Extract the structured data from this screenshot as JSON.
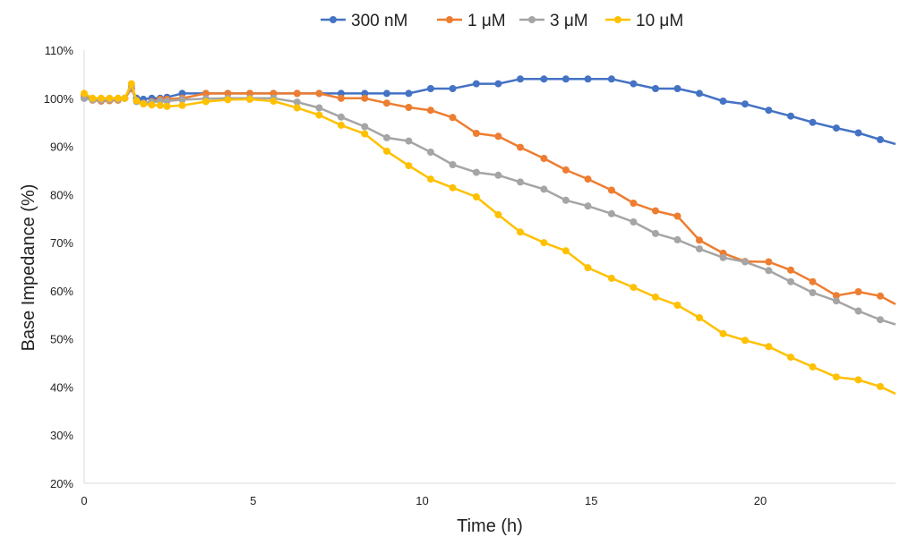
{
  "chart_data": {
    "type": "line",
    "title": "",
    "xlabel": "Time (h)",
    "ylabel": "Base Impedance (%)",
    "xlim": [
      0,
      24
    ],
    "ylim": [
      20,
      110
    ],
    "x_ticks": [
      0,
      5,
      10,
      15,
      20
    ],
    "y_ticks": [
      20,
      30,
      40,
      50,
      60,
      70,
      80,
      90,
      100,
      110
    ],
    "y_tick_format": "percent",
    "legend_position": "top-center",
    "grid": false,
    "series": [
      {
        "name": "300 nM",
        "color": "#4472C4",
        "points": [
          [
            0,
            100
          ],
          [
            0.25,
            99.7
          ],
          [
            0.5,
            99.6
          ],
          [
            0.75,
            99.7
          ],
          [
            1.0,
            99.8
          ],
          [
            1.2,
            100
          ],
          [
            1.4,
            102
          ],
          [
            1.55,
            100
          ],
          [
            1.75,
            99.8
          ],
          [
            2.0,
            100
          ],
          [
            2.25,
            100
          ],
          [
            2.45,
            100.2
          ],
          [
            2.9,
            101
          ],
          [
            3.6,
            101
          ],
          [
            4.25,
            101
          ],
          [
            4.9,
            101
          ],
          [
            5.6,
            101
          ],
          [
            6.3,
            101
          ],
          [
            6.95,
            101
          ],
          [
            7.6,
            101
          ],
          [
            8.3,
            101
          ],
          [
            8.95,
            101
          ],
          [
            9.6,
            101
          ],
          [
            10.25,
            102
          ],
          [
            10.9,
            102
          ],
          [
            11.6,
            103
          ],
          [
            12.25,
            103
          ],
          [
            12.9,
            104
          ],
          [
            13.6,
            104
          ],
          [
            14.25,
            104
          ],
          [
            14.9,
            104
          ],
          [
            15.6,
            104
          ],
          [
            16.25,
            103
          ],
          [
            16.9,
            102
          ],
          [
            17.55,
            102
          ],
          [
            18.2,
            101
          ],
          [
            18.9,
            99.4
          ],
          [
            19.55,
            98.8
          ],
          [
            20.25,
            97.5
          ],
          [
            20.9,
            96.3
          ],
          [
            21.55,
            95
          ],
          [
            22.25,
            93.8
          ],
          [
            22.9,
            92.8
          ],
          [
            23.55,
            91.4
          ],
          [
            24,
            90.5
          ]
        ]
      },
      {
        "name": "1 μM",
        "color": "#ED7D31",
        "points": [
          [
            0,
            100.5
          ],
          [
            0.25,
            99.6
          ],
          [
            0.5,
            99.4
          ],
          [
            0.75,
            99.5
          ],
          [
            1.0,
            99.6
          ],
          [
            1.2,
            100
          ],
          [
            1.4,
            102
          ],
          [
            1.55,
            99.5
          ],
          [
            1.75,
            99
          ],
          [
            2.0,
            99.3
          ],
          [
            2.25,
            99.8
          ],
          [
            2.45,
            99.8
          ],
          [
            2.9,
            100
          ],
          [
            3.6,
            101
          ],
          [
            4.25,
            101
          ],
          [
            4.9,
            101
          ],
          [
            5.6,
            101
          ],
          [
            6.3,
            101
          ],
          [
            6.95,
            101
          ],
          [
            7.6,
            100
          ],
          [
            8.3,
            100
          ],
          [
            8.95,
            99
          ],
          [
            9.6,
            98.1
          ],
          [
            10.25,
            97.5
          ],
          [
            10.9,
            96
          ],
          [
            11.6,
            92.7
          ],
          [
            12.25,
            92.1
          ],
          [
            12.9,
            89.8
          ],
          [
            13.6,
            87.5
          ],
          [
            14.25,
            85.1
          ],
          [
            14.9,
            83.2
          ],
          [
            15.6,
            80.9
          ],
          [
            16.25,
            78.2
          ],
          [
            16.9,
            76.6
          ],
          [
            17.55,
            75.5
          ],
          [
            18.2,
            70.5
          ],
          [
            18.9,
            67.8
          ],
          [
            19.55,
            66.1
          ],
          [
            20.25,
            66
          ],
          [
            20.9,
            64.3
          ],
          [
            21.55,
            61.9
          ],
          [
            22.25,
            59
          ],
          [
            22.9,
            59.8
          ],
          [
            23.55,
            58.9
          ],
          [
            24,
            57.2
          ]
        ]
      },
      {
        "name": "3 μM",
        "color": "#A5A5A5",
        "points": [
          [
            0,
            100
          ],
          [
            0.25,
            99.7
          ],
          [
            0.5,
            99.6
          ],
          [
            0.75,
            99.7
          ],
          [
            1.0,
            99.8
          ],
          [
            1.2,
            100
          ],
          [
            1.4,
            102.5
          ],
          [
            1.55,
            99.3
          ],
          [
            1.75,
            99
          ],
          [
            2.0,
            99.2
          ],
          [
            2.25,
            99.4
          ],
          [
            2.45,
            99.4
          ],
          [
            2.9,
            99.7
          ],
          [
            3.6,
            99.9
          ],
          [
            4.25,
            100
          ],
          [
            4.9,
            100
          ],
          [
            5.6,
            100
          ],
          [
            6.3,
            99.2
          ],
          [
            6.95,
            98
          ],
          [
            7.6,
            96.1
          ],
          [
            8.3,
            94.1
          ],
          [
            8.95,
            91.8
          ],
          [
            9.6,
            91.1
          ],
          [
            10.25,
            88.8
          ],
          [
            10.9,
            86.2
          ],
          [
            11.6,
            84.6
          ],
          [
            12.25,
            84
          ],
          [
            12.9,
            82.6
          ],
          [
            13.6,
            81.1
          ],
          [
            14.25,
            78.8
          ],
          [
            14.9,
            77.6
          ],
          [
            15.6,
            76
          ],
          [
            16.25,
            74.3
          ],
          [
            16.9,
            71.9
          ],
          [
            17.55,
            70.6
          ],
          [
            18.2,
            68.7
          ],
          [
            18.9,
            66.9
          ],
          [
            19.55,
            66
          ],
          [
            20.25,
            64.2
          ],
          [
            20.9,
            61.9
          ],
          [
            21.55,
            59.6
          ],
          [
            22.25,
            57.9
          ],
          [
            22.9,
            55.8
          ],
          [
            23.55,
            54
          ],
          [
            24,
            53
          ]
        ]
      },
      {
        "name": "10 μM",
        "color": "#FFC000",
        "points": [
          [
            0,
            101
          ],
          [
            0.25,
            100
          ],
          [
            0.5,
            100
          ],
          [
            0.75,
            100
          ],
          [
            1.0,
            100
          ],
          [
            1.2,
            100
          ],
          [
            1.4,
            103
          ],
          [
            1.55,
            99.5
          ],
          [
            1.75,
            98.8
          ],
          [
            2.0,
            98.6
          ],
          [
            2.25,
            98.5
          ],
          [
            2.45,
            98.3
          ],
          [
            2.9,
            98.5
          ],
          [
            3.6,
            99.3
          ],
          [
            4.25,
            99.7
          ],
          [
            4.9,
            99.8
          ],
          [
            5.6,
            99.4
          ],
          [
            6.3,
            98
          ],
          [
            6.95,
            96.5
          ],
          [
            7.6,
            94.4
          ],
          [
            8.3,
            92.6
          ],
          [
            8.95,
            89
          ],
          [
            9.6,
            86
          ],
          [
            10.25,
            83.2
          ],
          [
            10.9,
            81.4
          ],
          [
            11.6,
            79.5
          ],
          [
            12.25,
            75.8
          ],
          [
            12.9,
            72.2
          ],
          [
            13.6,
            70
          ],
          [
            14.25,
            68.3
          ],
          [
            14.9,
            64.8
          ],
          [
            15.6,
            62.6
          ],
          [
            16.25,
            60.7
          ],
          [
            16.9,
            58.7
          ],
          [
            17.55,
            57
          ],
          [
            18.2,
            54.4
          ],
          [
            18.9,
            51.1
          ],
          [
            19.55,
            49.7
          ],
          [
            20.25,
            48.4
          ],
          [
            20.9,
            46.2
          ],
          [
            21.55,
            44.2
          ],
          [
            22.25,
            42.1
          ],
          [
            22.9,
            41.5
          ],
          [
            23.55,
            40.1
          ],
          [
            24,
            38.6
          ]
        ]
      }
    ]
  }
}
